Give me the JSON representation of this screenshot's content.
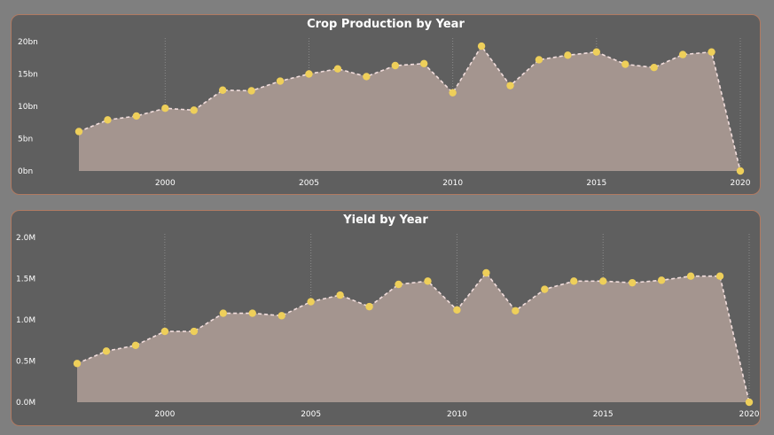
{
  "colors": {
    "background": "#7f7f7f",
    "panel": "#5f5f5f",
    "border": "#b07a62",
    "area_fill": "#a4958f",
    "line": "#f2dedd",
    "marker": "#eecf5a",
    "grid": "#8a8a8a",
    "text": "#ffffff"
  },
  "chart_data": [
    {
      "type": "area",
      "title": "Crop Production by Year",
      "xlabel": "",
      "ylabel": "",
      "x_ticks": [
        "2000",
        "2005",
        "2010",
        "2015",
        "2020"
      ],
      "y_ticks": [
        "0bn",
        "5bn",
        "10bn",
        "15bn",
        "20bn"
      ],
      "ylim": [
        0,
        20
      ],
      "xlim": [
        1997,
        2020
      ],
      "grid": "vertical dotted",
      "x": [
        1997,
        1998,
        1999,
        2000,
        2001,
        2002,
        2003,
        2004,
        2005,
        2006,
        2007,
        2008,
        2009,
        2010,
        2011,
        2012,
        2013,
        2014,
        2015,
        2016,
        2017,
        2018,
        2019,
        2020
      ],
      "values": [
        6.1,
        7.9,
        8.5,
        9.7,
        9.4,
        12.5,
        12.4,
        13.9,
        15.0,
        15.8,
        14.6,
        16.3,
        16.6,
        12.1,
        19.3,
        13.2,
        17.2,
        17.9,
        18.4,
        16.5,
        16.0,
        18.0,
        18.4,
        0.0
      ]
    },
    {
      "type": "area",
      "title": "Yield by Year",
      "xlabel": "",
      "ylabel": "",
      "x_ticks": [
        "2000",
        "2005",
        "2010",
        "2015",
        "2020"
      ],
      "y_ticks": [
        "0.0M",
        "0.5M",
        "1.0M",
        "1.5M",
        "2.0M"
      ],
      "ylim": [
        0,
        2.0
      ],
      "xlim": [
        1997,
        2020
      ],
      "grid": "vertical dotted",
      "x": [
        1997,
        1998,
        1999,
        2000,
        2001,
        2002,
        2003,
        2004,
        2005,
        2006,
        2007,
        2008,
        2009,
        2010,
        2011,
        2012,
        2013,
        2014,
        2015,
        2016,
        2017,
        2018,
        2019,
        2020
      ],
      "values": [
        0.47,
        0.62,
        0.69,
        0.86,
        0.86,
        1.08,
        1.08,
        1.05,
        1.22,
        1.3,
        1.16,
        1.43,
        1.47,
        1.12,
        1.57,
        1.11,
        1.37,
        1.47,
        1.47,
        1.45,
        1.48,
        1.53,
        1.53,
        0.0
      ]
    }
  ]
}
